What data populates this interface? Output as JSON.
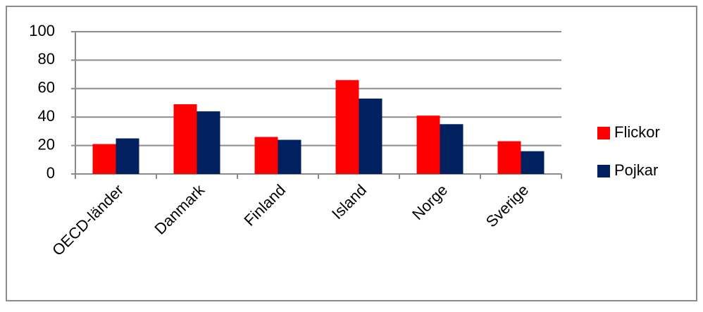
{
  "chart_data": {
    "type": "bar",
    "categories": [
      "OECD-länder",
      "Danmark",
      "Finland",
      "Island",
      "Norge",
      "Sverige"
    ],
    "series": [
      {
        "name": "Flickor",
        "color": "#ff0000",
        "values": [
          21,
          49,
          26,
          66,
          41,
          23
        ]
      },
      {
        "name": "Pojkar",
        "color": "#002060",
        "values": [
          25,
          44,
          24,
          53,
          35,
          16
        ]
      }
    ],
    "ylim": [
      0,
      100
    ],
    "yticks": [
      0,
      20,
      40,
      60,
      80,
      100
    ],
    "grid": true,
    "legend": "right"
  }
}
